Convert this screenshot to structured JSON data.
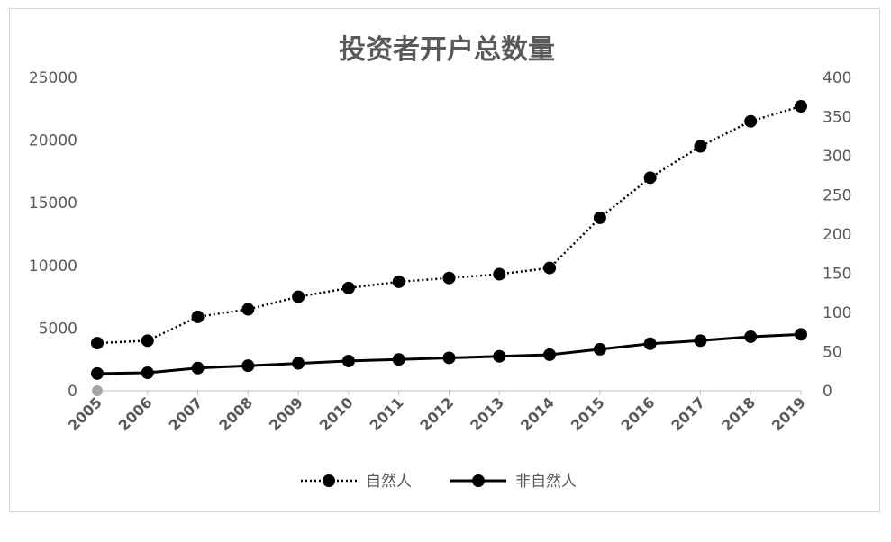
{
  "chart_data": {
    "type": "line",
    "title": "投资者开户总数量",
    "categories": [
      "2005",
      "2006",
      "2007",
      "2008",
      "2009",
      "2010",
      "2011",
      "2012",
      "2013",
      "2014",
      "2015",
      "2016",
      "2017",
      "2018",
      "2019"
    ],
    "left_axis": {
      "ticks": [
        "0",
        "5000",
        "10000",
        "15000",
        "20000",
        "25000"
      ],
      "range": [
        0,
        25000
      ]
    },
    "right_axis": {
      "ticks": [
        "0",
        "50",
        "100",
        "150",
        "200",
        "250",
        "300",
        "350",
        "400"
      ],
      "range": [
        0,
        400
      ]
    },
    "series": [
      {
        "name": "自然人",
        "axis": "left",
        "style": "dotted",
        "values": [
          3800,
          4000,
          5900,
          6500,
          7500,
          8200,
          8700,
          9000,
          9300,
          9800,
          13800,
          17000,
          19500,
          21500,
          22700
        ]
      },
      {
        "name": "非自然人",
        "axis": "right",
        "style": "solid",
        "values": [
          22,
          23,
          29,
          32,
          35,
          38,
          40,
          42,
          44,
          46,
          53,
          60,
          64,
          69,
          72
        ]
      }
    ],
    "legend_position": "bottom",
    "grid": false
  }
}
